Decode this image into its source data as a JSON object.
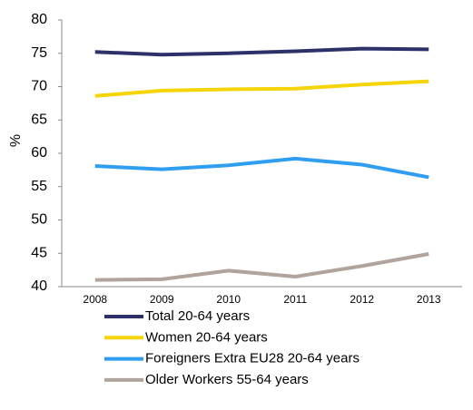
{
  "chart_data": {
    "type": "line",
    "y_label": "%",
    "categories": [
      "2008",
      "2009",
      "2010",
      "2011",
      "2012",
      "2013"
    ],
    "series": [
      {
        "name": "Total 20-64 years",
        "color": "#2e3169",
        "values": [
          75.2,
          74.8,
          75.0,
          75.3,
          75.7,
          75.6
        ]
      },
      {
        "name": "Women 20-64 years",
        "color": "#f5d50a",
        "values": [
          68.6,
          69.4,
          69.6,
          69.7,
          70.3,
          70.8
        ]
      },
      {
        "name": "Foreigners Extra EU28 20-64 years",
        "color": "#2f9ef0",
        "values": [
          58.1,
          57.6,
          58.2,
          59.2,
          58.3,
          56.4
        ]
      },
      {
        "name": "Older Workers 55-64 years",
        "color": "#b0a49c",
        "values": [
          41.0,
          41.1,
          42.4,
          41.5,
          43.1,
          44.9
        ]
      }
    ],
    "ylim": [
      40,
      80
    ],
    "yticks": [
      40,
      45,
      50,
      55,
      60,
      65,
      70,
      75,
      80
    ],
    "grid": false,
    "legend": "bottom"
  }
}
